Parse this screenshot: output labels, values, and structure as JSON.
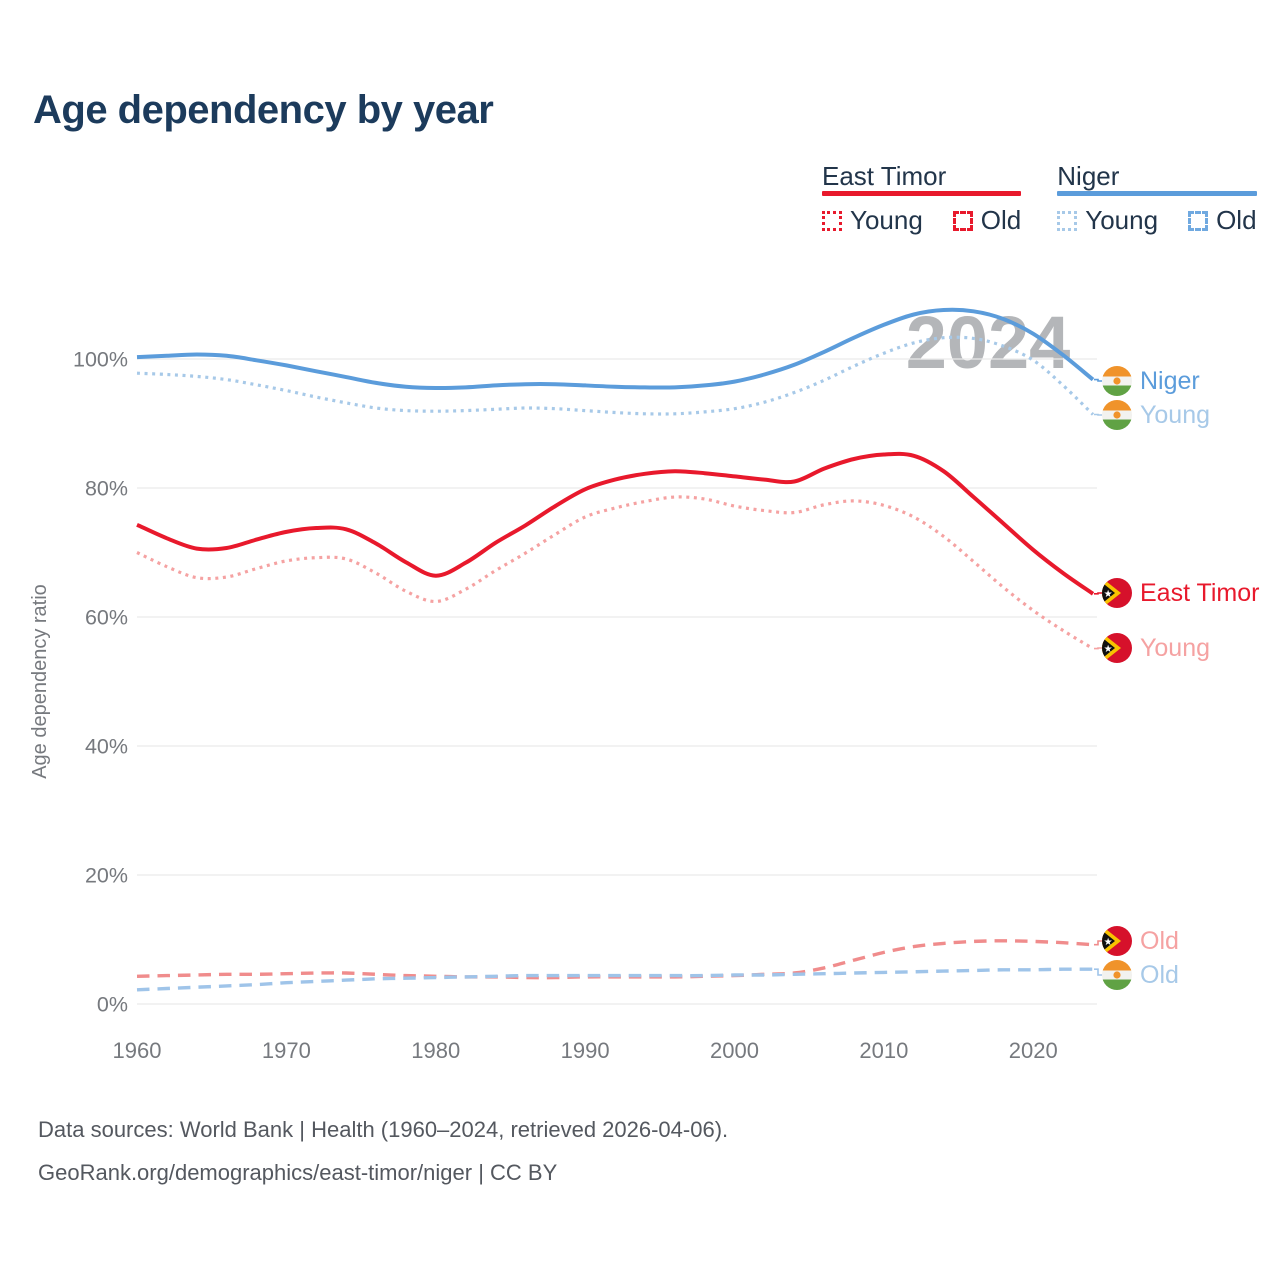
{
  "title": "Age dependency by year",
  "watermark": "2024",
  "colors": {
    "title": "#1c3b5c",
    "axis_text": "#76797e",
    "grid": "#ebebeb",
    "watermark": "#b4b6b9",
    "east_timor_red": "#e8192c",
    "east_timor_light": "#f5a2a2",
    "niger_blue": "#5b9cdb",
    "niger_light": "#a7c9e8"
  },
  "legend": {
    "groups": [
      {
        "name": "East Timor",
        "color": "#e8192c",
        "items": [
          {
            "label": "Young",
            "style": "dotted",
            "color": "#e8192c"
          },
          {
            "label": "Old",
            "style": "dashed",
            "color": "#e8192c"
          }
        ]
      },
      {
        "name": "Niger",
        "color": "#5b9cdb",
        "items": [
          {
            "label": "Young",
            "style": "dotted",
            "color": "#a7c9e8"
          },
          {
            "label": "Old",
            "style": "dashed",
            "color": "#70a9e0"
          }
        ]
      }
    ]
  },
  "chart_data": {
    "type": "line",
    "title": "Age dependency by year",
    "xlabel": "",
    "ylabel": "Age dependency ratio",
    "xlim": [
      1960,
      2024
    ],
    "ylim": [
      0,
      112
    ],
    "xticks": [
      1960,
      1970,
      1980,
      1990,
      2000,
      2010,
      2020
    ],
    "yticks": [
      0,
      20,
      40,
      60,
      80,
      100
    ],
    "ytick_suffix": "%",
    "grid": "horizontal",
    "legend_position": "top-right",
    "x": [
      1960,
      1962,
      1964,
      1966,
      1968,
      1970,
      1972,
      1974,
      1976,
      1978,
      1980,
      1982,
      1984,
      1986,
      1988,
      1990,
      1992,
      1994,
      1996,
      1998,
      2000,
      2002,
      2004,
      2006,
      2008,
      2010,
      2012,
      2014,
      2016,
      2018,
      2020,
      2022,
      2024
    ],
    "series": [
      {
        "name": "Niger",
        "country": "Niger",
        "component": "total",
        "style": "solid",
        "color": "#5b9cdb",
        "values": [
          100.3,
          100.5,
          100.7,
          100.5,
          99.8,
          99.0,
          98.1,
          97.2,
          96.3,
          95.7,
          95.5,
          95.6,
          95.9,
          96.1,
          96.1,
          95.9,
          95.7,
          95.6,
          95.6,
          95.9,
          96.5,
          97.6,
          99.1,
          101.1,
          103.3,
          105.3,
          106.9,
          107.6,
          107.4,
          106.2,
          103.9,
          100.6,
          96.8
        ]
      },
      {
        "name": "Niger Young",
        "country": "Niger",
        "component": "young",
        "style": "dotted",
        "color": "#a7c9e8",
        "values": [
          97.8,
          97.6,
          97.3,
          96.8,
          96.0,
          95.1,
          94.1,
          93.2,
          92.4,
          92.0,
          91.9,
          92.0,
          92.2,
          92.4,
          92.3,
          92.0,
          91.7,
          91.5,
          91.5,
          91.8,
          92.3,
          93.3,
          94.8,
          96.7,
          98.9,
          100.9,
          102.5,
          103.3,
          103.2,
          102.0,
          99.8,
          95.9,
          91.4
        ]
      },
      {
        "name": "East Timor",
        "country": "East Timor",
        "component": "total",
        "style": "solid",
        "color": "#e8192c",
        "values": [
          74.3,
          72.2,
          70.6,
          70.7,
          72.0,
          73.2,
          73.8,
          73.6,
          71.4,
          68.5,
          66.4,
          68.4,
          71.5,
          74.2,
          77.2,
          79.8,
          81.3,
          82.2,
          82.6,
          82.3,
          81.8,
          81.3,
          81.0,
          83.0,
          84.5,
          85.2,
          85.0,
          82.6,
          78.6,
          74.5,
          70.4,
          66.8,
          63.6
        ]
      },
      {
        "name": "East Timor Young",
        "country": "East Timor",
        "component": "young",
        "style": "dotted",
        "color": "#f5a2a2",
        "values": [
          70.0,
          67.8,
          66.1,
          66.2,
          67.5,
          68.7,
          69.2,
          69.0,
          66.8,
          64.0,
          62.4,
          64.3,
          67.2,
          69.9,
          72.8,
          75.5,
          76.9,
          77.9,
          78.6,
          78.3,
          77.2,
          76.5,
          76.2,
          77.4,
          78.0,
          77.3,
          75.5,
          72.5,
          68.6,
          64.6,
          61.0,
          57.9,
          55.1
        ]
      },
      {
        "name": "East Timor Old",
        "country": "East Timor",
        "component": "old",
        "style": "dashed",
        "color": "#f08c8c",
        "values": [
          4.3,
          4.4,
          4.5,
          4.6,
          4.6,
          4.7,
          4.8,
          4.8,
          4.6,
          4.4,
          4.3,
          4.2,
          4.2,
          4.1,
          4.1,
          4.2,
          4.2,
          4.2,
          4.2,
          4.3,
          4.4,
          4.6,
          4.8,
          5.6,
          6.8,
          8.0,
          8.9,
          9.4,
          9.7,
          9.8,
          9.7,
          9.5,
          9.2
        ]
      },
      {
        "name": "Niger Old",
        "country": "Niger",
        "component": "old",
        "style": "dashed",
        "color": "#9fc4e9",
        "values": [
          2.2,
          2.4,
          2.6,
          2.8,
          3.0,
          3.3,
          3.5,
          3.7,
          3.9,
          4.0,
          4.1,
          4.2,
          4.3,
          4.4,
          4.4,
          4.4,
          4.4,
          4.4,
          4.4,
          4.4,
          4.5,
          4.5,
          4.6,
          4.7,
          4.8,
          4.9,
          5.0,
          5.1,
          5.2,
          5.3,
          5.3,
          5.4,
          5.4
        ]
      }
    ]
  },
  "end_labels": [
    {
      "label": "Niger",
      "flag": "niger",
      "color": "#5b9cdb"
    },
    {
      "label": "Young",
      "flag": "niger",
      "color": "#a7c9e8"
    },
    {
      "label": "East Timor",
      "flag": "east-timor",
      "color": "#e8192c"
    },
    {
      "label": "Young",
      "flag": "east-timor",
      "color": "#f5a2a2"
    },
    {
      "label": "Old",
      "flag": "east-timor",
      "color": "#f5a2a2"
    },
    {
      "label": "Old",
      "flag": "niger",
      "color": "#a7c9e8"
    }
  ],
  "footer": {
    "line1": "Data sources: World Bank | Health (1960–2024, retrieved 2026-04-06).",
    "line2": "GeoRank.org/demographics/east-timor/niger | CC BY"
  }
}
